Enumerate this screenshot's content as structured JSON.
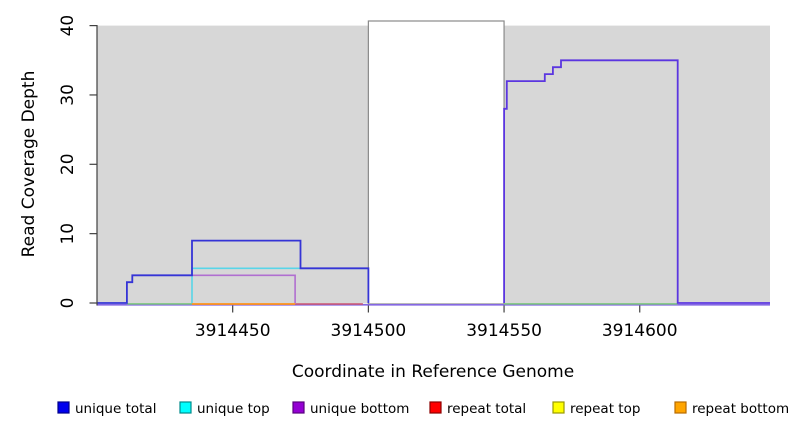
{
  "chart_data": {
    "type": "line",
    "title": "",
    "xlabel": "Coordinate in Reference Genome",
    "ylabel": "Read Coverage Depth",
    "xlim": [
      3914400,
      3914648
    ],
    "ylim": [
      0,
      40
    ],
    "x_ticks": [
      3914450,
      3914500,
      3914550,
      3914600
    ],
    "y_ticks": [
      0,
      10,
      20,
      30,
      40
    ],
    "grid": false,
    "background_color": "#d7d7d7",
    "highlight_region": {
      "from": 3914500,
      "to": 3914550,
      "fill": "#ffffff",
      "border_color": "#8a8a8a"
    },
    "series": [
      {
        "name": "unique total",
        "color": "#0000ee",
        "steps": [
          [
            3914400,
            0
          ],
          [
            3914411,
            3
          ],
          [
            3914413,
            4
          ],
          [
            3914435,
            9
          ],
          [
            3914475,
            5
          ],
          [
            3914500,
            0
          ],
          [
            3914550,
            28
          ],
          [
            3914551,
            32
          ],
          [
            3914565,
            33
          ],
          [
            3914568,
            34
          ],
          [
            3914571,
            35
          ],
          [
            3914614,
            0
          ],
          [
            3914648,
            0
          ]
        ]
      },
      {
        "name": "unique top",
        "color": "#00ffff",
        "steps": [
          [
            3914400,
            0
          ],
          [
            3914435,
            5
          ],
          [
            3914500,
            0
          ],
          [
            3914648,
            0
          ]
        ]
      },
      {
        "name": "unique bottom",
        "color": "#9400d3",
        "steps": [
          [
            3914400,
            0
          ],
          [
            3914435,
            4
          ],
          [
            3914473,
            0
          ],
          [
            3914550,
            28
          ],
          [
            3914551,
            32
          ],
          [
            3914565,
            33
          ],
          [
            3914568,
            34
          ],
          [
            3914571,
            35
          ],
          [
            3914614,
            0
          ],
          [
            3914648,
            0
          ]
        ]
      },
      {
        "name": "repeat total",
        "color": "#ff0000",
        "steps": [
          [
            3914400,
            0
          ],
          [
            3914648,
            0
          ]
        ]
      },
      {
        "name": "repeat top",
        "color": "#ffff00",
        "steps": [
          [
            3914400,
            0
          ],
          [
            3914648,
            0
          ]
        ]
      },
      {
        "name": "repeat bottom",
        "color": "#ffa500",
        "steps": [
          [
            3914400,
            0
          ],
          [
            3914473,
            0
          ],
          [
            3914648,
            0
          ]
        ]
      }
    ],
    "render_lines": [
      {
        "name": "baseline-unique-bottom",
        "color": "#8468e2",
        "width": 1.6,
        "y_offset": 1.8,
        "points": [
          [
            3914400,
            0
          ],
          [
            3914648,
            0
          ]
        ]
      },
      {
        "name": "baseline-green-left",
        "color": "#7cc87c",
        "width": 1.5,
        "y_offset": 0.9,
        "points": [
          [
            3914411,
            0
          ],
          [
            3914435,
            0
          ]
        ]
      },
      {
        "name": "baseline-repeat-bottom",
        "color": "#ff9418",
        "width": 1.8,
        "y_offset": 1.0,
        "points": [
          [
            3914435,
            0
          ],
          [
            3914473,
            0
          ]
        ]
      },
      {
        "name": "baseline-repeat-total",
        "color": "#cc5570",
        "width": 1.5,
        "y_offset": 1.0,
        "points": [
          [
            3914473,
            0
          ],
          [
            3914498,
            0
          ]
        ]
      },
      {
        "name": "baseline-green-right",
        "color": "#7cc87c",
        "width": 1.5,
        "y_offset": 0.9,
        "points": [
          [
            3914550,
            0
          ],
          [
            3914614,
            0
          ]
        ]
      },
      {
        "name": "unique-top-line",
        "color": "#58d5e8",
        "width": 1.6,
        "y_offset": 0,
        "points": [
          [
            3914435,
            0
          ],
          [
            3914435,
            5
          ],
          [
            3914500,
            5
          ]
        ]
      },
      {
        "name": "unique-bottom-left-line",
        "color": "#b06fd0",
        "width": 1.6,
        "y_offset": 0,
        "points": [
          [
            3914435,
            4
          ],
          [
            3914473,
            4
          ],
          [
            3914473,
            0
          ]
        ]
      },
      {
        "name": "unique-total-left-line",
        "color": "#3534d6",
        "width": 1.8,
        "y_offset": 0,
        "points": [
          [
            3914400,
            0
          ],
          [
            3914411,
            0
          ],
          [
            3914411,
            3
          ],
          [
            3914413,
            3
          ],
          [
            3914413,
            4
          ],
          [
            3914435,
            4
          ],
          [
            3914435,
            9
          ],
          [
            3914475,
            9
          ],
          [
            3914475,
            5
          ],
          [
            3914500,
            5
          ],
          [
            3914500,
            0
          ]
        ]
      },
      {
        "name": "unique-right-line",
        "color": "#5b36e0",
        "width": 1.8,
        "y_offset": 0,
        "points": [
          [
            3914550,
            0
          ],
          [
            3914550,
            28
          ],
          [
            3914551,
            28
          ],
          [
            3914551,
            32
          ],
          [
            3914565,
            32
          ],
          [
            3914565,
            33
          ],
          [
            3914568,
            33
          ],
          [
            3914568,
            34
          ],
          [
            3914571,
            34
          ],
          [
            3914571,
            35
          ],
          [
            3914614,
            35
          ],
          [
            3914614,
            0
          ],
          [
            3914648,
            0
          ]
        ]
      }
    ],
    "legend": {
      "position": "bottom",
      "items": [
        {
          "label": "unique total",
          "fill": "#0000ee",
          "border": "#00008b"
        },
        {
          "label": "unique top",
          "fill": "#00ffff",
          "border": "#008b8b"
        },
        {
          "label": "unique bottom",
          "fill": "#9400d3",
          "border": "#5a0080"
        },
        {
          "label": "repeat total",
          "fill": "#ff0000",
          "border": "#8b0000"
        },
        {
          "label": "repeat top",
          "fill": "#ffff00",
          "border": "#9a9a00"
        },
        {
          "label": "repeat bottom",
          "fill": "#ffa500",
          "border": "#b86b00"
        }
      ]
    }
  }
}
